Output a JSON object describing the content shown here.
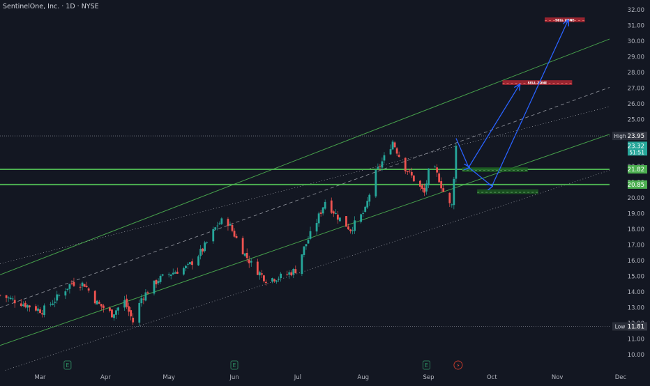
{
  "header": {
    "title": "SentinelOne, Inc. · 1D · NYSE"
  },
  "colors": {
    "background": "#131722",
    "up": "#26a69a",
    "down": "#ef5350",
    "channel": "#4caf50",
    "level": "#4caf50",
    "arrow": "#2962ff",
    "sell_zone": "#b22833",
    "buy_zone": "#1b5e20",
    "axis_text": "#b2b5be"
  },
  "chart_data": {
    "type": "candlestick",
    "ticker": "SentinelOne, Inc.",
    "interval": "1D",
    "exchange": "NYSE",
    "y_ticks": [
      10.0,
      11.0,
      12.0,
      13.0,
      14.0,
      15.0,
      16.0,
      17.0,
      18.0,
      19.0,
      20.0,
      21.0,
      22.0,
      23.0,
      25.0,
      26.0,
      27.0,
      28.0,
      29.0,
      30.0,
      31.0,
      32.0
    ],
    "x_ticks": [
      {
        "label": "Mar",
        "date": "2023-03-01"
      },
      {
        "label": "Apr",
        "date": "2023-04-01"
      },
      {
        "label": "May",
        "date": "2023-05-01"
      },
      {
        "label": "Jun",
        "date": "2023-06-01"
      },
      {
        "label": "Jul",
        "date": "2023-07-01"
      },
      {
        "label": "Aug",
        "date": "2023-08-01"
      },
      {
        "label": "Sep",
        "date": "2023-09-01"
      },
      {
        "label": "Oct",
        "date": "2023-10-01"
      },
      {
        "label": "Nov",
        "date": "2023-11-01"
      },
      {
        "label": "Dec",
        "date": "2023-12-01"
      }
    ],
    "x_range": [
      "2023-02-10",
      "2023-12-01"
    ],
    "price_labels": [
      {
        "name": "High",
        "value": "23.95",
        "type": "high"
      },
      {
        "value": "23.32",
        "sub": "51:51",
        "type": "current"
      },
      {
        "value": "21.82",
        "type": "level"
      },
      {
        "value": "20.85",
        "type": "level"
      },
      {
        "name": "Low",
        "value": "11.81",
        "type": "low"
      }
    ],
    "horizontal_levels": [
      21.82,
      20.85
    ],
    "dotted_levels": [
      23.95,
      11.81
    ],
    "channel": {
      "start_date": "2023-02-10",
      "end_date": "2023-12-01",
      "lines": [
        {
          "start": 15.8,
          "end": 26.0,
          "style": "dotted"
        },
        {
          "start": 15.1,
          "end": 30.4,
          "style": "solid"
        },
        {
          "start": 13.0,
          "end": 27.3,
          "style": "dashed"
        },
        {
          "start": 10.6,
          "end": 24.3,
          "style": "solid"
        },
        {
          "start": 8.9,
          "end": 22.0,
          "style": "dotted"
        }
      ]
    },
    "zones": [
      {
        "label": "SELL ZONE",
        "type": "sell",
        "start": "2023-10-06",
        "end": "2023-11-08",
        "low": 27.2,
        "high": 27.5
      },
      {
        "label": "SELL ZONE",
        "type": "sell",
        "start": "2023-10-26",
        "end": "2023-11-14",
        "low": 31.2,
        "high": 31.5
      },
      {
        "label": "",
        "type": "buy",
        "start": "2023-09-17",
        "end": "2023-10-18",
        "low": 21.65,
        "high": 21.95
      },
      {
        "label": "",
        "type": "buy",
        "start": "2023-09-24",
        "end": "2023-10-23",
        "low": 20.25,
        "high": 20.55
      }
    ],
    "projection_paths": [
      [
        [
          "2023-09-14",
          23.8
        ],
        [
          "2023-09-20",
          21.95
        ],
        [
          "2023-10-14",
          27.2
        ]
      ],
      [
        [
          "2023-09-20",
          21.95
        ],
        [
          "2023-10-01",
          20.75
        ],
        [
          "2023-11-06",
          31.3
        ]
      ]
    ],
    "event_markers": [
      {
        "label": "E",
        "date": "2023-03-14"
      },
      {
        "label": "E",
        "date": "2023-06-01"
      },
      {
        "label": "E",
        "date": "2023-08-31"
      },
      {
        "label": "⚡",
        "date": "2023-09-15"
      }
    ],
    "control_points": [
      [
        "2023-02-10",
        13.8
      ],
      [
        "2023-02-16",
        13.5
      ],
      [
        "2023-02-24",
        13.1
      ],
      [
        "2023-03-02",
        12.8
      ],
      [
        "2023-03-08",
        13.5
      ],
      [
        "2023-03-16",
        14.6
      ],
      [
        "2023-03-22",
        14.5
      ],
      [
        "2023-03-28",
        13.3
      ],
      [
        "2023-04-04",
        12.6
      ],
      [
        "2023-04-10",
        13.4
      ],
      [
        "2023-04-14",
        12.1
      ],
      [
        "2023-04-18",
        13.6
      ],
      [
        "2023-04-26",
        14.8
      ],
      [
        "2023-05-02",
        15.2
      ],
      [
        "2023-05-10",
        15.6
      ],
      [
        "2023-05-17",
        16.7
      ],
      [
        "2023-05-24",
        18.3
      ],
      [
        "2023-05-28",
        18.7
      ],
      [
        "2023-06-02",
        17.4
      ],
      [
        "2023-06-06",
        16.4
      ],
      [
        "2023-06-10",
        15.6
      ],
      [
        "2023-06-16",
        14.8
      ],
      [
        "2023-06-24",
        15.0
      ],
      [
        "2023-06-30",
        15.4
      ],
      [
        "2023-07-04",
        16.8
      ],
      [
        "2023-07-10",
        18.5
      ],
      [
        "2023-07-14",
        19.8
      ],
      [
        "2023-07-20",
        18.8
      ],
      [
        "2023-07-26",
        18.0
      ],
      [
        "2023-08-02",
        19.2
      ],
      [
        "2023-08-06",
        21.3
      ],
      [
        "2023-08-12",
        22.8
      ],
      [
        "2023-08-15",
        23.6
      ],
      [
        "2023-08-20",
        22.1
      ],
      [
        "2023-08-26",
        21.0
      ],
      [
        "2023-08-30",
        20.3
      ],
      [
        "2023-09-02",
        22.3
      ],
      [
        "2023-09-06",
        21.2
      ],
      [
        "2023-09-10",
        19.6
      ],
      [
        "2023-09-12",
        19.5
      ],
      [
        "2023-09-13",
        21.4
      ],
      [
        "2023-09-14",
        23.32
      ]
    ]
  }
}
